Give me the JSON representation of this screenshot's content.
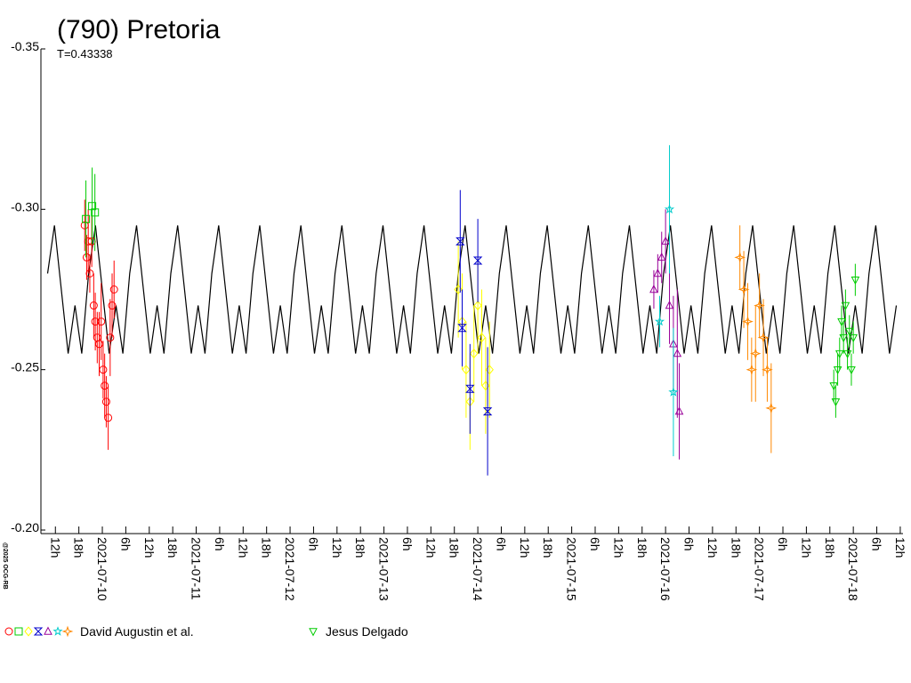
{
  "chart_data": {
    "type": "lightcurve",
    "title": "(790) Pretoria",
    "subtitle": "T=0.43338",
    "credit": "@2025 OCG-RB",
    "ylim": [
      -0.35,
      -0.2
    ],
    "yticks": [
      -0.35,
      {
        "value": -0.3,
        "label": "-0.30"
      },
      -0.25,
      {
        "value": -0.2,
        "label": "-0.20"
      }
    ],
    "y_inverted": true,
    "xlim": [
      -15.7,
      204.7
    ],
    "xticks": [
      {
        "value": -12,
        "label": "12h"
      },
      {
        "value": -6,
        "label": "18h"
      },
      {
        "value": 0,
        "label": "2021-07-10"
      },
      {
        "value": 6,
        "label": "6h"
      },
      {
        "value": 12,
        "label": "12h"
      },
      {
        "value": 18,
        "label": "18h"
      },
      {
        "value": 24,
        "label": "2021-07-11"
      },
      {
        "value": 30,
        "label": "6h"
      },
      {
        "value": 36,
        "label": "12h"
      },
      {
        "value": 42,
        "label": "18h"
      },
      {
        "value": 48,
        "label": "2021-07-12"
      },
      {
        "value": 54,
        "label": "6h"
      },
      {
        "value": 60,
        "label": "12h"
      },
      {
        "value": 66,
        "label": "18h"
      },
      {
        "value": 72,
        "label": "2021-07-13"
      },
      {
        "value": 78,
        "label": "6h"
      },
      {
        "value": 84,
        "label": "12h"
      },
      {
        "value": 90,
        "label": "18h"
      },
      {
        "value": 96,
        "label": "2021-07-14"
      },
      {
        "value": 102,
        "label": "6h"
      },
      {
        "value": 108,
        "label": "12h"
      },
      {
        "value": 114,
        "label": "18h"
      },
      {
        "value": 120,
        "label": "2021-07-15"
      },
      {
        "value": 126,
        "label": "6h"
      },
      {
        "value": 132,
        "label": "12h"
      },
      {
        "value": 138,
        "label": "18h"
      },
      {
        "value": 144,
        "label": "2021-07-16"
      },
      {
        "value": 150,
        "label": "6h"
      },
      {
        "value": 156,
        "label": "12h"
      },
      {
        "value": 162,
        "label": "18h"
      },
      {
        "value": 168,
        "label": "2021-07-17"
      },
      {
        "value": 174,
        "label": "6h"
      },
      {
        "value": 180,
        "label": "12h"
      },
      {
        "value": 186,
        "label": "18h"
      },
      {
        "value": 192,
        "label": "2021-07-18"
      },
      {
        "value": 198,
        "label": "6h"
      },
      {
        "value": 204,
        "label": "12h"
      }
    ],
    "model": {
      "color": "#000000",
      "x": [
        -14,
        -12.25,
        -10.5,
        -8.75,
        -7,
        -5.25,
        -3.5,
        -1.75,
        0,
        1.75,
        3.5,
        5.25,
        7,
        8.75,
        10.5,
        12.25,
        14,
        15.75,
        17.5,
        19.25,
        21,
        22.75,
        24.5,
        26.25,
        28,
        29.75,
        31.5,
        33.25,
        35,
        36.75,
        38.5,
        40.25,
        42,
        43.75,
        45.5,
        47.25,
        49,
        50.75,
        52.5,
        54.25,
        56,
        57.75,
        59.5,
        61.25,
        63,
        64.75,
        66.5,
        68.25,
        70,
        71.75,
        73.5,
        75.25,
        77,
        78.75,
        80.5,
        82.25,
        84,
        85.75,
        87.5,
        89.25,
        91,
        92.75,
        94.5,
        96.25,
        98,
        99.75,
        101.5,
        103.25,
        105,
        106.75,
        108.5,
        110.25,
        112,
        113.75,
        115.5,
        117.25,
        119,
        120.75,
        122.5,
        124.25,
        126,
        127.75,
        129.5,
        131.25,
        133,
        134.75,
        136.5,
        138.25,
        140,
        141.75,
        143.5,
        145.25,
        147,
        148.75,
        150.5,
        152.25,
        154,
        155.75,
        157.5,
        159.25,
        161,
        162.75,
        164.5,
        166.25,
        168,
        169.75,
        171.5,
        173.25,
        175,
        176.75,
        178.5,
        180.25,
        182,
        183.75,
        185.5,
        187.25,
        189,
        190.75,
        192.5,
        194.25,
        196,
        197.75,
        199.5,
        201.25,
        203
      ],
      "values": [
        -0.28,
        -0.295,
        -0.275,
        -0.255,
        -0.27,
        -0.255,
        -0.28,
        -0.295,
        -0.275,
        -0.255,
        -0.27,
        -0.255,
        -0.28,
        -0.295,
        -0.275,
        -0.255,
        -0.27,
        -0.255,
        -0.28,
        -0.295,
        -0.275,
        -0.255,
        -0.27,
        -0.255,
        -0.28,
        -0.295,
        -0.275,
        -0.255,
        -0.27,
        -0.255,
        -0.28,
        -0.295,
        -0.275,
        -0.255,
        -0.27,
        -0.255,
        -0.28,
        -0.295,
        -0.275,
        -0.255,
        -0.27,
        -0.255,
        -0.28,
        -0.295,
        -0.275,
        -0.255,
        -0.27,
        -0.255,
        -0.28,
        -0.295,
        -0.275,
        -0.255,
        -0.27,
        -0.255,
        -0.28,
        -0.295,
        -0.275,
        -0.255,
        -0.27,
        -0.255,
        -0.28,
        -0.295,
        -0.275,
        -0.255,
        -0.27,
        -0.255,
        -0.28,
        -0.295,
        -0.275,
        -0.255,
        -0.27,
        -0.255,
        -0.28,
        -0.295,
        -0.275,
        -0.255,
        -0.27,
        -0.255,
        -0.28,
        -0.295,
        -0.275,
        -0.255,
        -0.27,
        -0.255,
        -0.28,
        -0.295,
        -0.275,
        -0.255,
        -0.27,
        -0.255,
        -0.28,
        -0.295,
        -0.275,
        -0.255,
        -0.27,
        -0.255,
        -0.28,
        -0.295,
        -0.275,
        -0.255,
        -0.27,
        -0.255,
        -0.28,
        -0.295,
        -0.275,
        -0.255,
        -0.27,
        -0.255,
        -0.28,
        -0.295,
        -0.275,
        -0.255,
        -0.27,
        -0.255,
        -0.28,
        -0.295,
        -0.275,
        -0.255,
        -0.27,
        -0.255,
        -0.28,
        -0.295,
        -0.275,
        -0.255,
        -0.27
      ]
    },
    "observers": [
      {
        "name": "David Augustin et al.",
        "sessions": [
          {
            "marker": "circle",
            "color": "#ff0000",
            "x": [
              -4.5,
              -4,
              -3.6,
              -3.2,
              -2.7,
              -2.2,
              -1.8,
              -1.3,
              -0.8,
              -0.3,
              0.2,
              0.6,
              1,
              1.5,
              2,
              2.5,
              3
            ],
            "values": [
              -0.295,
              -0.285,
              -0.29,
              -0.28,
              -0.29,
              -0.27,
              -0.265,
              -0.26,
              -0.258,
              -0.265,
              -0.25,
              -0.245,
              -0.24,
              -0.235,
              -0.26,
              -0.27,
              -0.275
            ],
            "errors": [
              0.008,
              0.007,
              0.01,
              0.006,
              0.008,
              0.01,
              0.009,
              0.008,
              0.01,
              0.012,
              0.009,
              0.01,
              0.008,
              0.01,
              0.012,
              0.01,
              0.009
            ]
          },
          {
            "marker": "square",
            "color": "#00cc00",
            "x": [
              -4.2,
              -2.6,
              -1.9
            ],
            "values": [
              -0.297,
              -0.301,
              -0.299
            ],
            "errors": [
              0.012,
              0.012,
              0.012
            ]
          },
          {
            "marker": "diamond",
            "color": "#ffff00",
            "x": [
              91,
              92,
              93,
              94,
              95,
              96,
              97,
              98,
              99
            ],
            "values": [
              -0.275,
              -0.265,
              -0.25,
              -0.24,
              -0.255,
              -0.27,
              -0.26,
              -0.245,
              -0.25
            ],
            "errors": [
              0.015,
              0.015,
              0.015,
              0.015,
              0.015,
              0.015,
              0.015,
              0.015,
              0.015
            ]
          },
          {
            "marker": "hourglass",
            "color": "#0000cc",
            "x": [
              91.5,
              92,
              94,
              96,
              98.5
            ],
            "values": [
              -0.29,
              -0.263,
              -0.244,
              -0.284,
              -0.237
            ],
            "errors": [
              0.016,
              0.012,
              0.014,
              0.013,
              0.02
            ]
          },
          {
            "marker": "triangle",
            "color": "#990099",
            "x": [
              141,
              142,
              143,
              144,
              145,
              146,
              147,
              147.5
            ],
            "values": [
              -0.275,
              -0.28,
              -0.285,
              -0.29,
              -0.27,
              -0.258,
              -0.255,
              -0.237
            ],
            "errors": [
              0.006,
              0.006,
              0.008,
              0.01,
              0.012,
              0.015,
              0.02,
              0.015
            ]
          },
          {
            "marker": "star",
            "color": "#00cccc",
            "x": [
              142.5,
              145,
              146
            ],
            "values": [
              -0.265,
              -0.3,
              -0.243
            ],
            "errors": [
              0.008,
              0.02,
              0.02
            ]
          },
          {
            "marker": "star4",
            "color": "#ff8800",
            "x": [
              163,
              164,
              165,
              166,
              167,
              168,
              169,
              170,
              171
            ],
            "values": [
              -0.285,
              -0.275,
              -0.265,
              -0.25,
              -0.255,
              -0.27,
              -0.26,
              -0.25,
              -0.238
            ],
            "errors": [
              0.01,
              0.012,
              0.012,
              0.01,
              0.015,
              0.01,
              0.012,
              0.01,
              0.014
            ]
          }
        ]
      },
      {
        "name": "Jesus Delgado",
        "sessions": [
          {
            "marker": "triangle-down",
            "color": "#00cc00",
            "x": [
              187,
              187.5,
              188,
              188.5,
              189,
              189.5,
              190,
              190.5,
              191,
              191.5,
              192,
              192.5
            ],
            "values": [
              -0.245,
              -0.24,
              -0.25,
              -0.255,
              -0.265,
              -0.26,
              -0.27,
              -0.255,
              -0.262,
              -0.25,
              -0.26,
              -0.278
            ],
            "errors": [
              0.005,
              0.005,
              0.005,
              0.005,
              0.005,
              0.005,
              0.005,
              0.005,
              0.005,
              0.005,
              0.005,
              0.005
            ]
          }
        ]
      }
    ]
  }
}
